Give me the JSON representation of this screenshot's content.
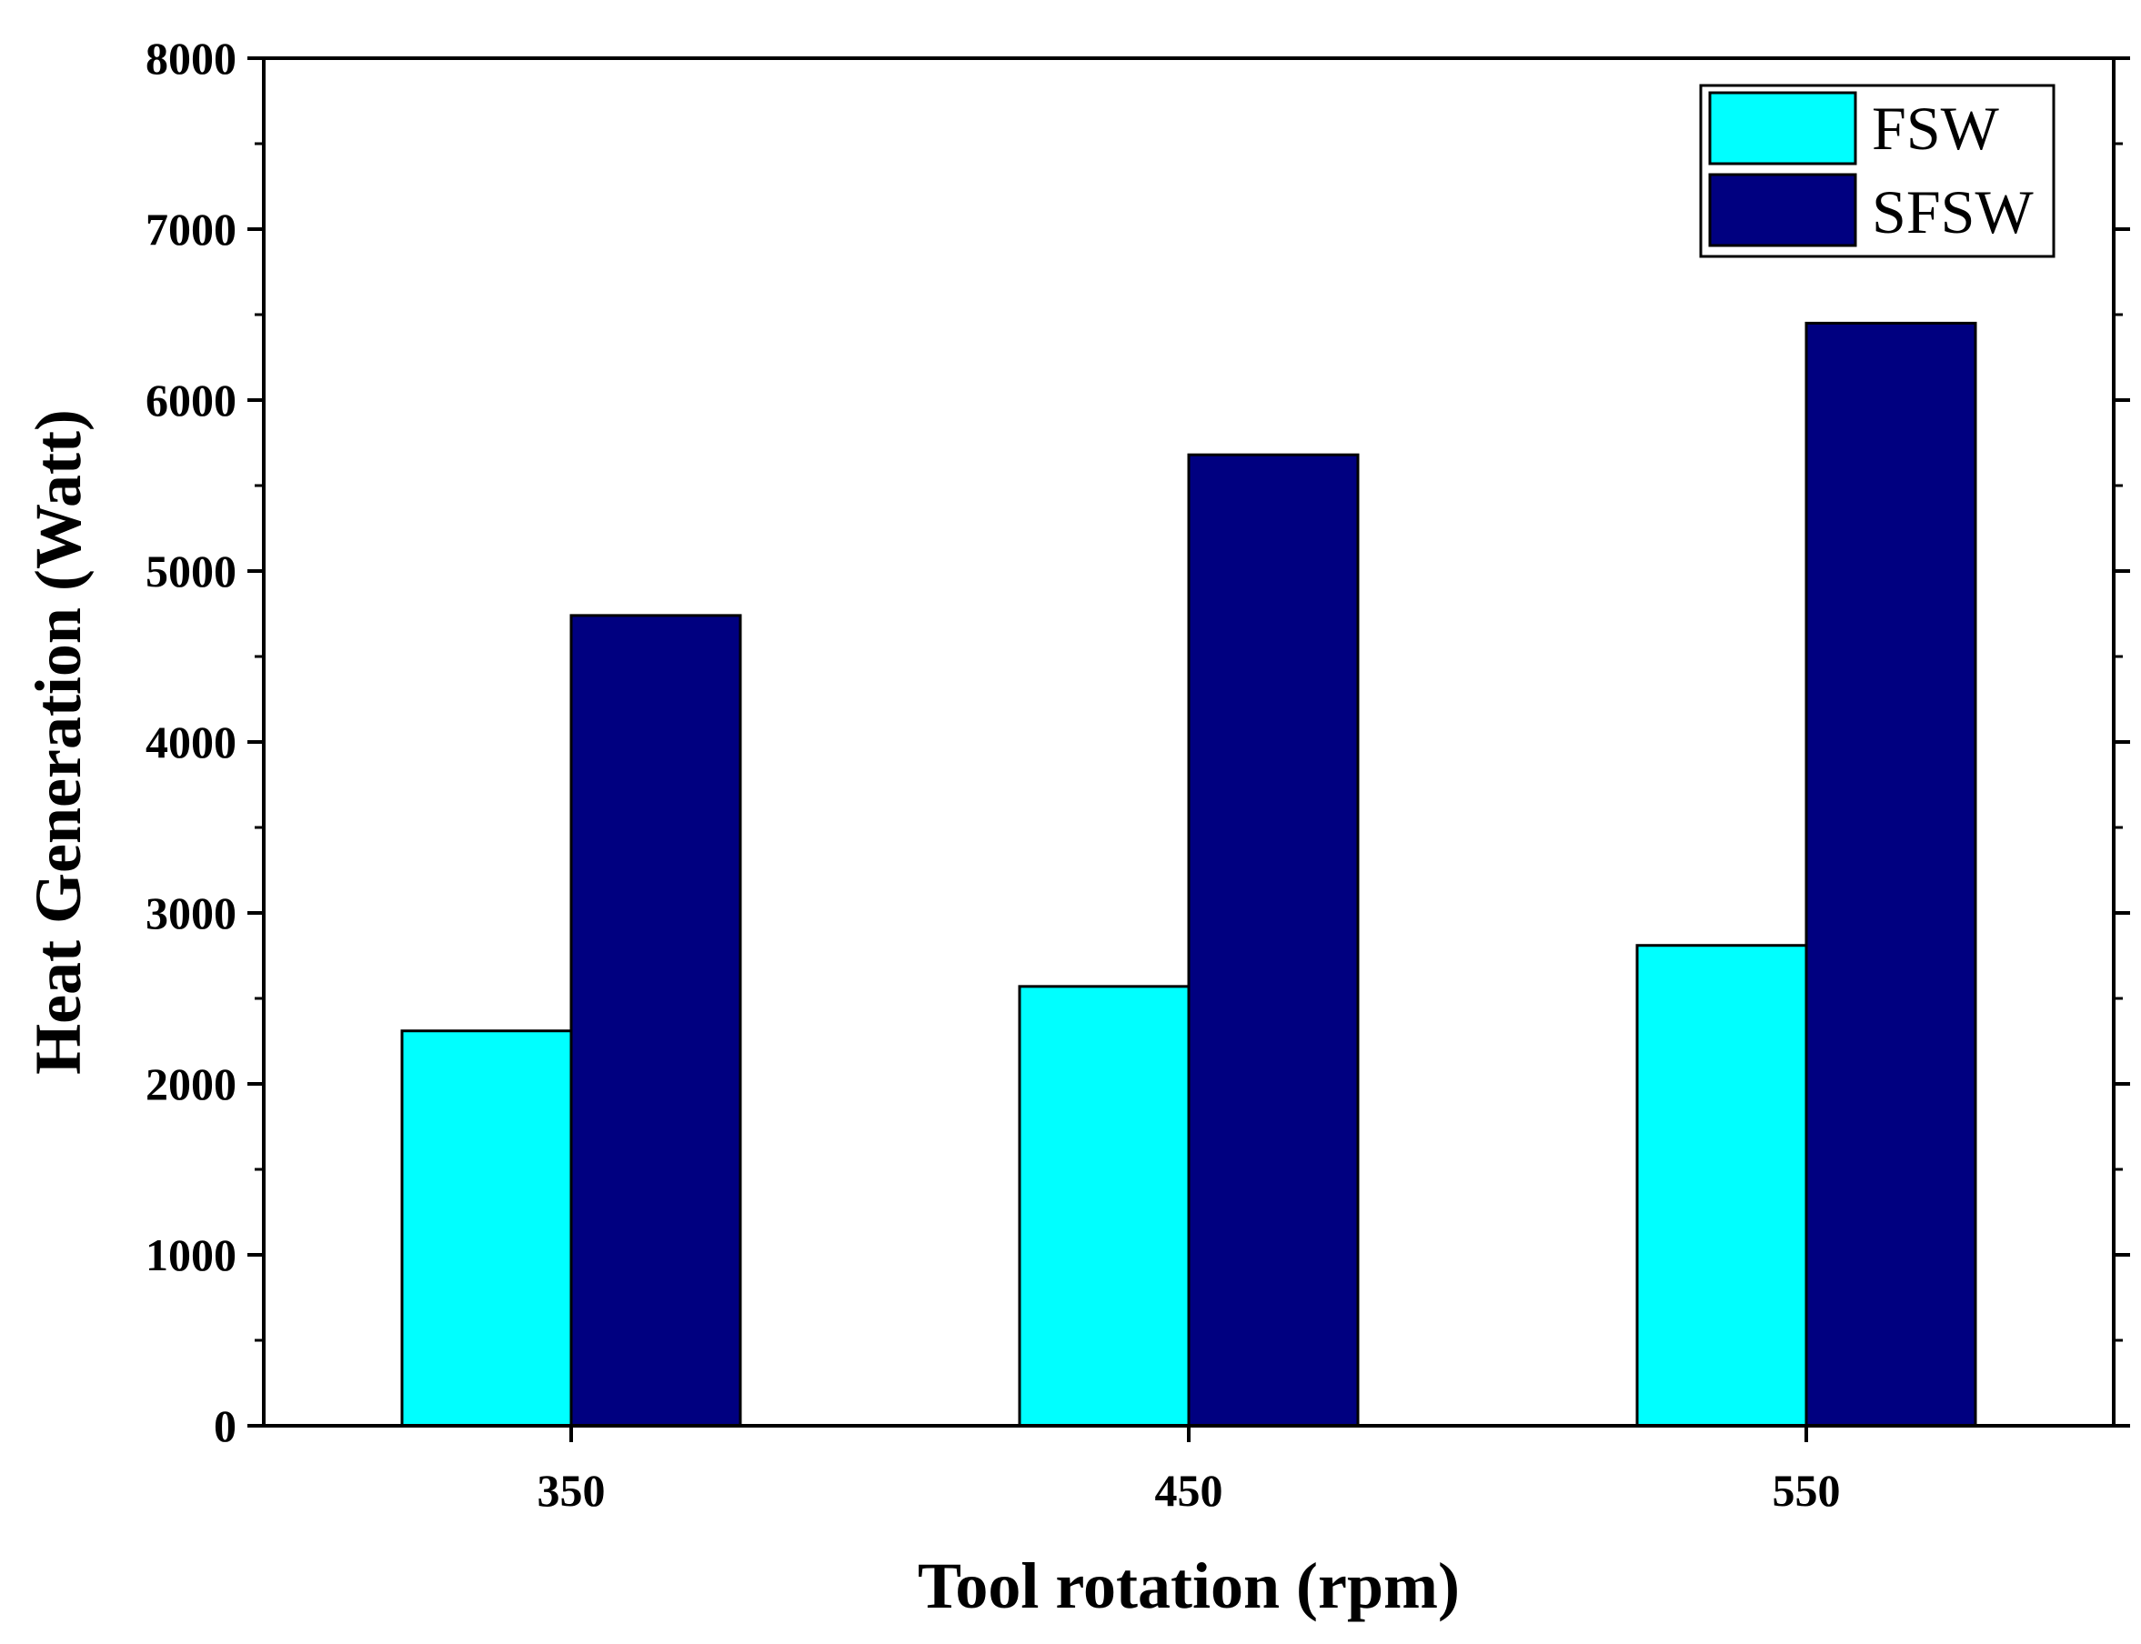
{
  "chart_data": {
    "type": "bar",
    "title": "",
    "xlabel": "Tool rotation (rpm)",
    "ylabel": "Heat Generation (Watt)",
    "categories": [
      "350",
      "450",
      "550"
    ],
    "series": [
      {
        "name": "FSW",
        "color": "#00ffff",
        "values": [
          2310,
          2570,
          2810
        ]
      },
      {
        "name": "SFSW",
        "color": "#000080",
        "values": [
          4740,
          5680,
          6450
        ]
      }
    ],
    "ylim": [
      0,
      8000
    ],
    "yticks": [
      0,
      1000,
      2000,
      3000,
      4000,
      5000,
      6000,
      7000,
      8000
    ],
    "ytick_labels": [
      "0",
      "1000",
      "2000",
      "3000",
      "4000",
      "5000",
      "6000",
      "7000",
      "8000"
    ],
    "grid": false,
    "legend_position": "top-right"
  }
}
